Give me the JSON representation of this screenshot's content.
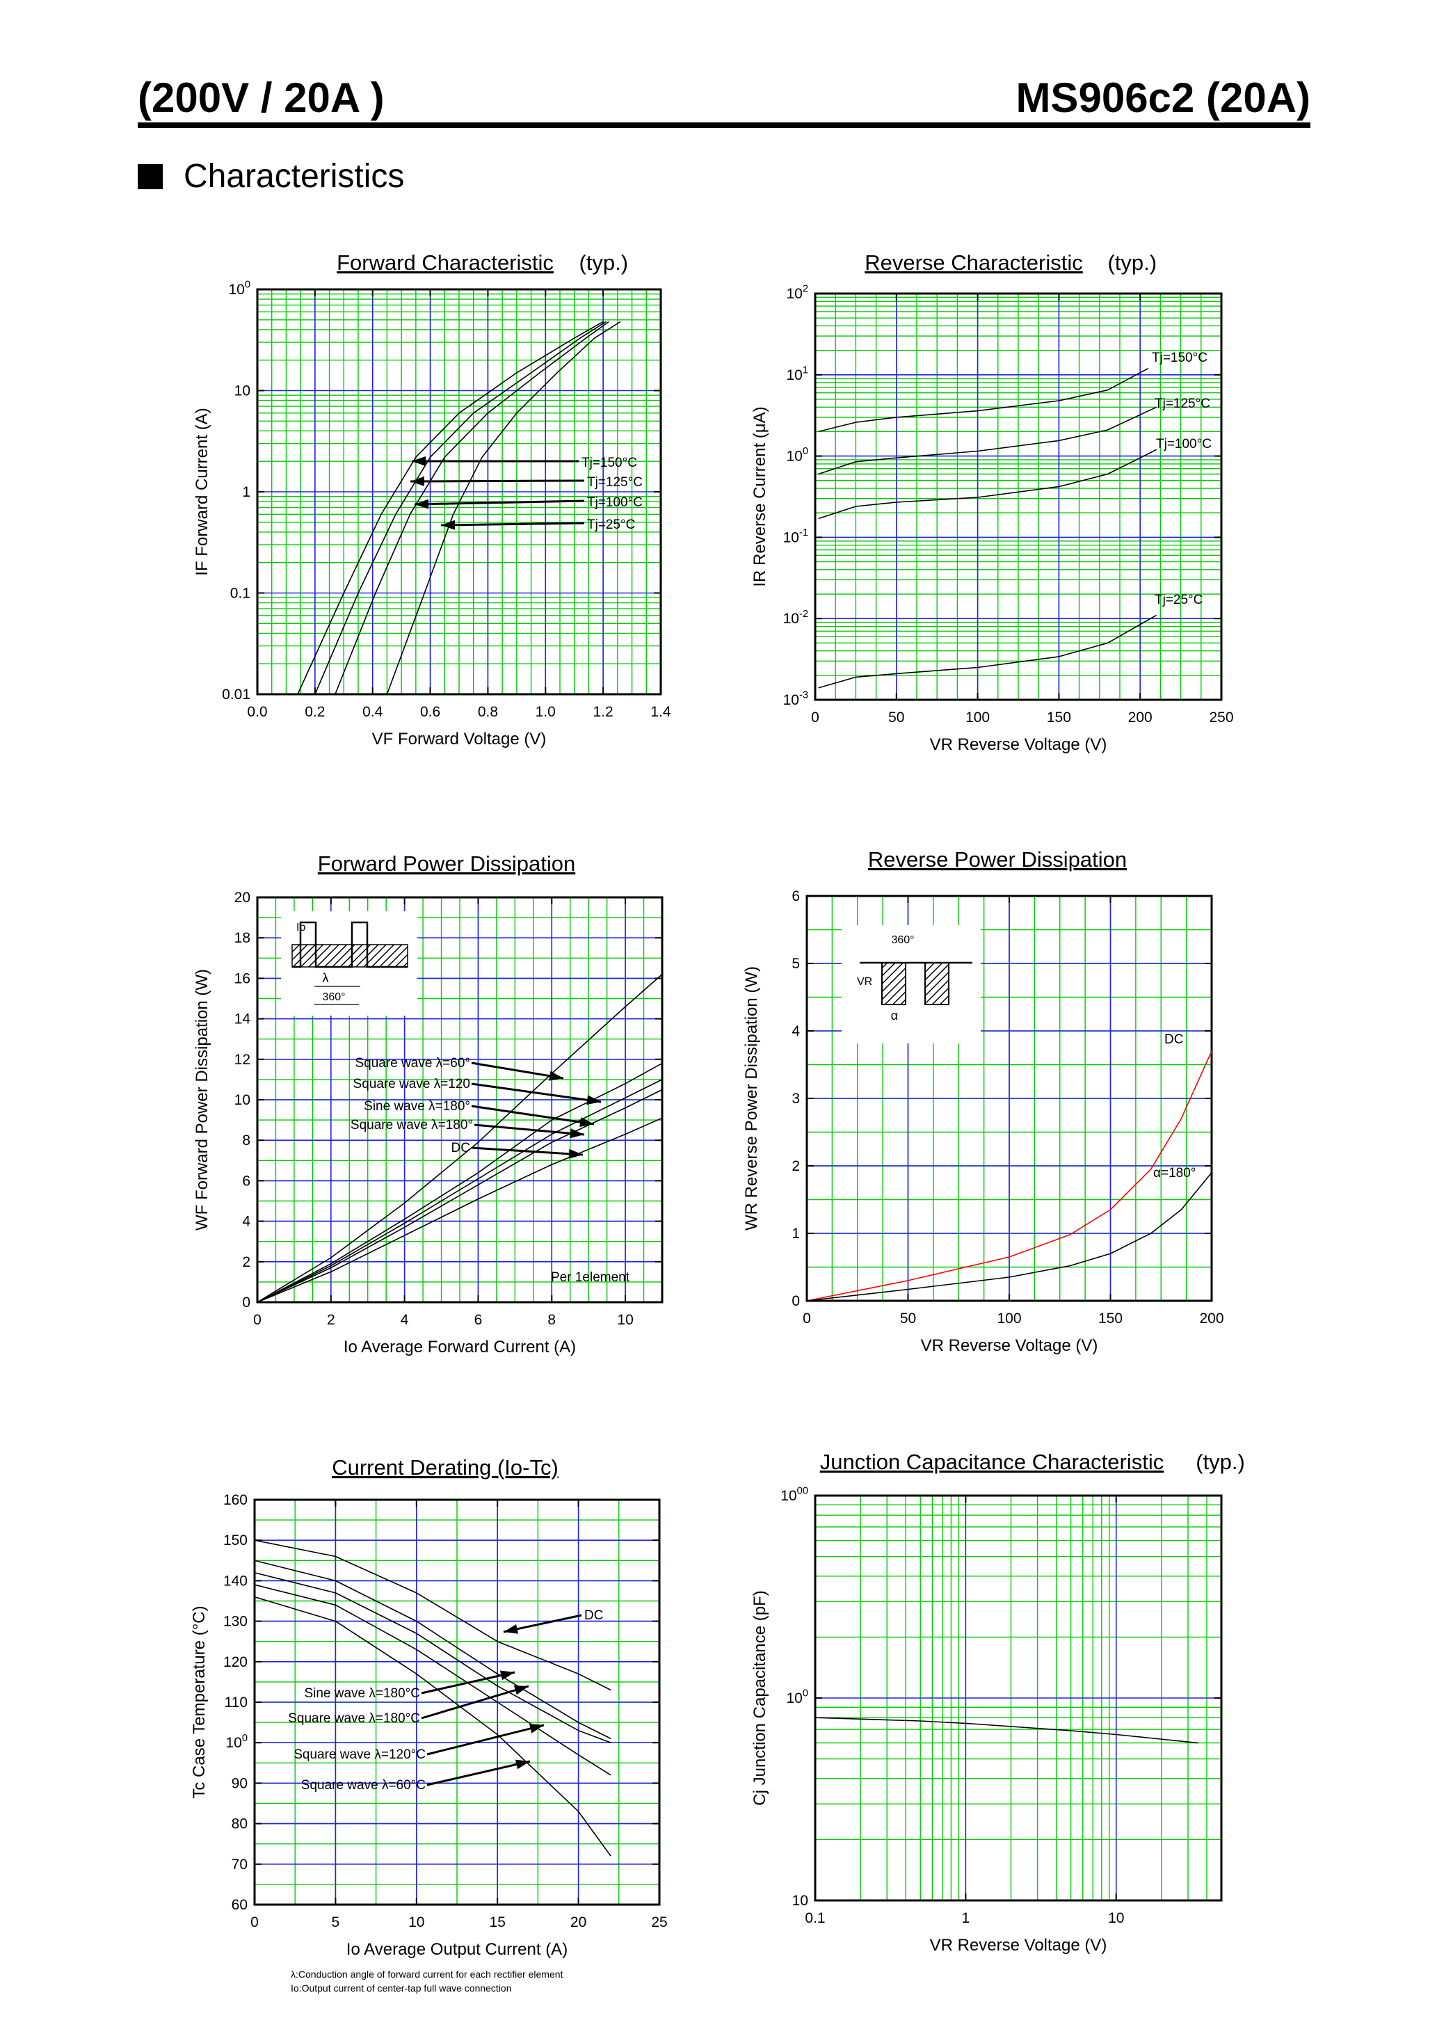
{
  "header": {
    "left_title": "(200V / 20A )",
    "right_title": "MS906c2 (20A)",
    "section_title": "Characteristics"
  },
  "chart_data": [
    {
      "id": "forward",
      "type": "line",
      "title": "Forward Characteristic",
      "title_suffix": "(typ.)",
      "xlabel": "VF   Forward Voltage  (V)",
      "ylabel": "IF   Forward Current  (A)",
      "xlim": [
        0,
        1.4
      ],
      "ylim": [
        0.01,
        100
      ],
      "yscale": "log",
      "grid": true,
      "xticks": [
        "0.0",
        "0.2",
        "0.4",
        "0.6",
        "0.8",
        "1.0",
        "1.2",
        "1.4"
      ],
      "yticks": [
        "0.01",
        "0.1",
        "1",
        "10",
        "100"
      ],
      "series": [
        {
          "name": "Tj=150°C",
          "x": [
            0.14,
            0.3,
            0.43,
            0.55,
            0.7,
            0.9,
            1.1,
            1.2
          ],
          "y": [
            0.01,
            0.1,
            0.6,
            2.2,
            6,
            15,
            33,
            48
          ]
        },
        {
          "name": "Tj=125°C",
          "x": [
            0.2,
            0.35,
            0.48,
            0.6,
            0.75,
            0.95,
            1.12,
            1.21
          ],
          "y": [
            0.01,
            0.1,
            0.6,
            2.2,
            6,
            15,
            33,
            48
          ]
        },
        {
          "name": "Tj=100°C",
          "x": [
            0.27,
            0.41,
            0.53,
            0.65,
            0.8,
            0.98,
            1.14,
            1.22
          ],
          "y": [
            0.01,
            0.1,
            0.6,
            2.2,
            6,
            15,
            33,
            48
          ]
        },
        {
          "name": "Tj=25°C",
          "x": [
            0.45,
            0.58,
            0.68,
            0.78,
            0.9,
            1.04,
            1.17,
            1.26
          ],
          "y": [
            0.01,
            0.1,
            0.6,
            2.2,
            6,
            15,
            33,
            48
          ]
        }
      ],
      "annotations": [
        "Tj=150°C",
        "Tj=125°C",
        "Tj=100°C",
        "Tj=25°C"
      ]
    },
    {
      "id": "reverse",
      "type": "line",
      "title": "Reverse Characteristic",
      "title_suffix": "(typ.)",
      "xlabel": "VR   Reverse Voltage   (V)",
      "ylabel": "IR   Reverse Current  (μA)",
      "xlim": [
        0,
        250
      ],
      "ylim": [
        0.001,
        100
      ],
      "yscale": "log",
      "grid": true,
      "xticks": [
        "0",
        "50",
        "100",
        "150",
        "200",
        "250"
      ],
      "yticks": [
        "10-3",
        "10-2",
        "10-1",
        "100",
        "101",
        "102"
      ],
      "series": [
        {
          "name": "Tj=150°C",
          "x": [
            2,
            25,
            50,
            100,
            150,
            180,
            205
          ],
          "y": [
            2,
            2.6,
            3,
            3.6,
            4.8,
            6.5,
            12
          ]
        },
        {
          "name": "Tj=125°C",
          "x": [
            2,
            25,
            50,
            100,
            150,
            180,
            210
          ],
          "y": [
            0.6,
            0.85,
            0.95,
            1.15,
            1.55,
            2.1,
            4
          ]
        },
        {
          "name": "Tj=100°C",
          "x": [
            2,
            25,
            50,
            100,
            150,
            180,
            210
          ],
          "y": [
            0.17,
            0.24,
            0.27,
            0.31,
            0.42,
            0.6,
            1.2
          ]
        },
        {
          "name": "Tj=25°C",
          "x": [
            2,
            25,
            50,
            100,
            150,
            180,
            210
          ],
          "y": [
            0.0014,
            0.0019,
            0.0021,
            0.0025,
            0.0034,
            0.005,
            0.011
          ]
        }
      ],
      "annotations": [
        "Tj=150°C",
        "Tj=125°C",
        "Tj=100°C",
        "Tj=25°C"
      ]
    },
    {
      "id": "fpd",
      "type": "line",
      "title": "Forward Power Dissipation",
      "xlabel": "Io    Average Forward Current     (A)",
      "ylabel": "WF    Forward Power Dissipation    (W)",
      "xlim": [
        0,
        11
      ],
      "ylim": [
        0,
        20
      ],
      "grid": true,
      "xticks": [
        "0",
        "2",
        "4",
        "6",
        "8",
        "10"
      ],
      "yticks": [
        "0",
        "2",
        "4",
        "6",
        "8",
        "10",
        "12",
        "14",
        "16",
        "18",
        "20"
      ],
      "series": [
        {
          "name": "Square wave λ=60°",
          "x": [
            0,
            2,
            4,
            6,
            8,
            10,
            11
          ],
          "y": [
            0,
            2.2,
            4.9,
            7.9,
            11.3,
            14.6,
            16.2
          ]
        },
        {
          "name": "Square wave λ=120",
          "x": [
            0,
            2,
            4,
            6,
            8,
            10,
            11
          ],
          "y": [
            0,
            1.9,
            4.1,
            6.4,
            9,
            10.8,
            11.8
          ]
        },
        {
          "name": "Sine wave λ=180°",
          "x": [
            0,
            2,
            4,
            6,
            8,
            10,
            11
          ],
          "y": [
            0,
            1.8,
            3.9,
            6.1,
            8.3,
            10.1,
            11
          ]
        },
        {
          "name": "Square wave λ=180°",
          "x": [
            0,
            2,
            4,
            6,
            8,
            10,
            11
          ],
          "y": [
            0,
            1.7,
            3.7,
            5.8,
            7.9,
            9.6,
            10.5
          ]
        },
        {
          "name": "DC",
          "x": [
            0,
            2,
            4,
            6,
            8,
            10,
            11
          ],
          "y": [
            0,
            1.5,
            3.3,
            5.1,
            6.8,
            8.3,
            9.1
          ]
        }
      ],
      "annotations": [
        "Square wave  λ=60°",
        "Square wave  λ=120",
        "Sine wave  λ=180°",
        "Square wave  λ=180°",
        "DC",
        "Per 1element"
      ],
      "inset_labels": {
        "io": "Io",
        "lambda": "λ",
        "deg": "360°"
      }
    },
    {
      "id": "rpd",
      "type": "line",
      "title": "Reverse Power Dissipation",
      "xlabel": "VR     Reverse Voltage    (V)",
      "ylabel": "WR    Reverse  Power  Dissipation     (W)",
      "xlim": [
        0,
        200
      ],
      "ylim": [
        0,
        6
      ],
      "grid": true,
      "xticks": [
        "0",
        "50",
        "100",
        "150",
        "200"
      ],
      "yticks": [
        "0",
        "1",
        "2",
        "3",
        "4",
        "5",
        "6"
      ],
      "series": [
        {
          "name": "DC",
          "color": "#ff0000",
          "x": [
            0,
            50,
            100,
            130,
            150,
            170,
            185,
            200
          ],
          "y": [
            0,
            0.3,
            0.65,
            0.98,
            1.35,
            1.95,
            2.7,
            3.7
          ]
        },
        {
          "name": "α=180°",
          "color": "#000000",
          "x": [
            0,
            50,
            100,
            130,
            150,
            170,
            185,
            200
          ],
          "y": [
            0,
            0.17,
            0.35,
            0.52,
            0.7,
            1.0,
            1.35,
            1.9
          ]
        }
      ],
      "annotations": [
        "DC",
        "α=180°"
      ],
      "inset_labels": {
        "vr": "VR",
        "alpha": "α",
        "deg": "360°"
      }
    },
    {
      "id": "derating",
      "type": "line",
      "title": "Current Derating  (Io-Tc)",
      "xlabel": "Io    Average Output Current     (A)",
      "ylabel": "Tc    Case Temperature      (°C)",
      "xlim": [
        0,
        25
      ],
      "ylim": [
        60,
        160
      ],
      "grid": true,
      "xticks": [
        "0",
        "5",
        "10",
        "15",
        "20",
        "25"
      ],
      "yticks": [
        "60",
        "70",
        "80",
        "90",
        "100",
        "110",
        "120",
        "130",
        "140",
        "150",
        "160"
      ],
      "series": [
        {
          "name": "DC",
          "x": [
            0,
            5,
            10,
            15,
            20,
            22
          ],
          "y": [
            150,
            146,
            137,
            125,
            117,
            113
          ]
        },
        {
          "name": "Sine wave λ=180°C",
          "x": [
            0,
            5,
            10,
            15,
            20,
            22
          ],
          "y": [
            145,
            140,
            130,
            117,
            105,
            101
          ]
        },
        {
          "name": "Square wave λ=180°C",
          "x": [
            0,
            5,
            10,
            15,
            20,
            22
          ],
          "y": [
            142,
            137,
            127,
            114,
            103,
            100
          ]
        },
        {
          "name": "Square wave λ=120°C",
          "x": [
            0,
            5,
            10,
            15,
            20,
            22
          ],
          "y": [
            139,
            134,
            123,
            110,
            97,
            92
          ]
        },
        {
          "name": "Square wave λ=60°C",
          "x": [
            0,
            5,
            10,
            15,
            20,
            22
          ],
          "y": [
            136,
            130,
            117,
            102,
            83,
            72
          ]
        }
      ],
      "annotations": [
        "DC",
        "Sine wave   λ=180°C",
        "Square wave   λ=180°C",
        "Square wave   λ=120°C",
        "Square wave   λ=60°C"
      ],
      "footnotes": [
        "λ:Conduction angle of forward current for each rectifier element",
        "Io:Output current of center-tap full wave connection"
      ]
    },
    {
      "id": "capacitance",
      "type": "line",
      "title": "Junction Capacitance Characteristic",
      "title_suffix": "(typ.)",
      "xlabel": "VR    Reverse Voltage    (V)",
      "ylabel": "Cj    Junction Capacitance   (pF)",
      "xlim": [
        0.1,
        50
      ],
      "ylim": [
        10,
        1000
      ],
      "xscale": "log",
      "yscale": "log",
      "grid": true,
      "xticks": [
        "0.1",
        "1",
        "10"
      ],
      "yticks": [
        "10",
        "100",
        "1000"
      ],
      "series": [
        {
          "name": "Cj",
          "x": [
            0.1,
            0.5,
            1,
            5,
            10,
            35
          ],
          "y": [
            80,
            77,
            75,
            69,
            66,
            60
          ]
        }
      ]
    }
  ]
}
